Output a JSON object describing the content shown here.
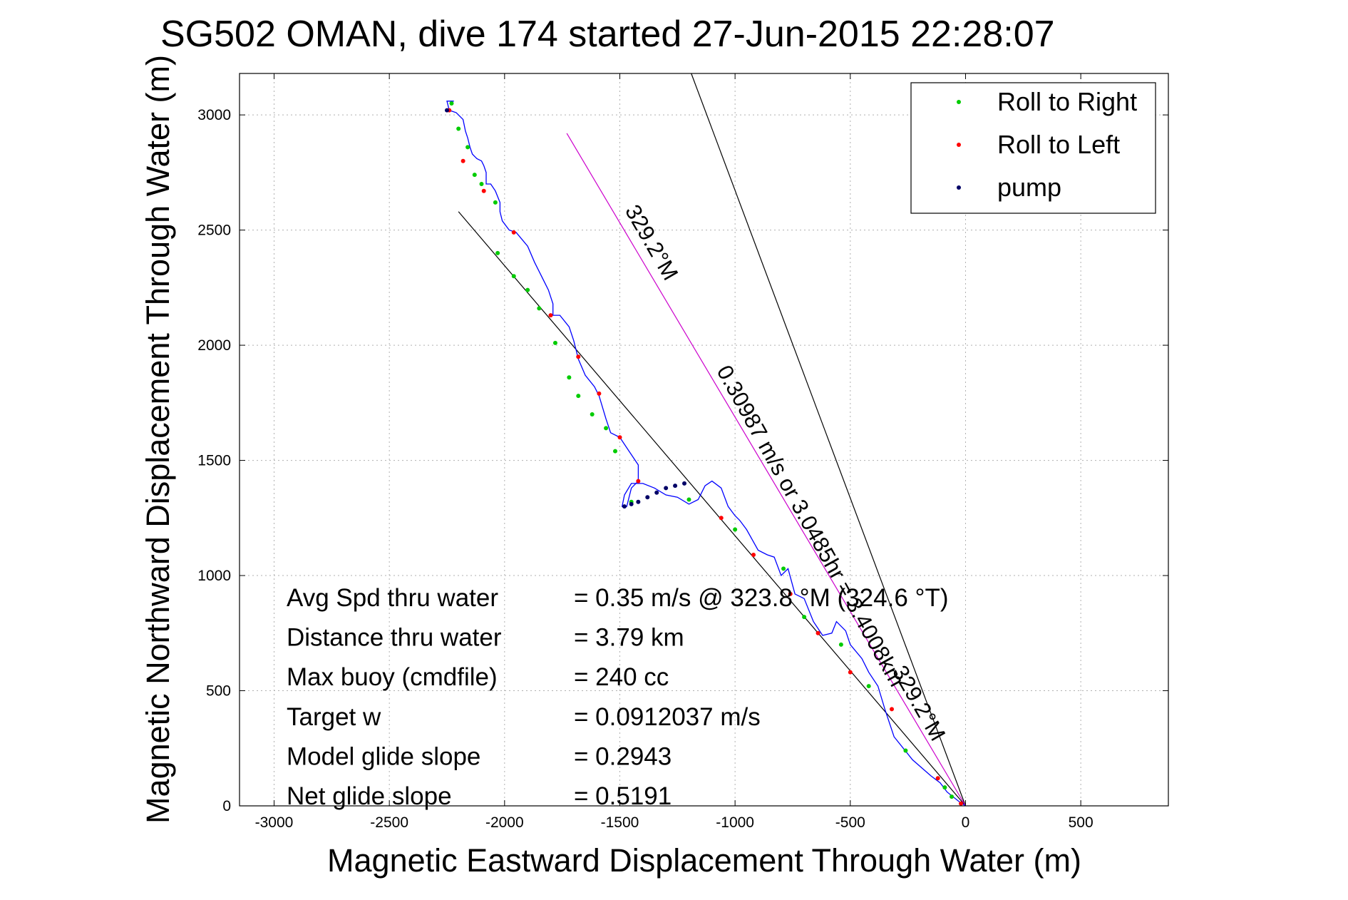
{
  "chart_data": {
    "type": "scatter",
    "title": "SG502 OMAN, dive 174 started 27-Jun-2015 22:28:07",
    "xlabel": "Magnetic Eastward Displacement Through Water (m)",
    "ylabel": "Magnetic Northward Displacement Through Water (m)",
    "xlim": [
      -3150,
      880
    ],
    "ylim": [
      0,
      3180
    ],
    "xticks": [
      -3000,
      -2500,
      -2000,
      -1500,
      -1000,
      -500,
      0,
      500
    ],
    "yticks": [
      0,
      500,
      1000,
      1500,
      2000,
      2500,
      3000
    ],
    "grid": true,
    "legend_position": "top-right",
    "legend": [
      {
        "label": "Roll to Right",
        "color": "#00cc00"
      },
      {
        "label": "Roll to Left",
        "color": "#ff0000"
      },
      {
        "label": "pump",
        "color": "#000066"
      }
    ],
    "track": {
      "name": "glider track",
      "color": "#0000ff",
      "x": [
        0,
        -30,
        -80,
        -110,
        -150,
        -230,
        -310,
        -350,
        -380,
        -420,
        -450,
        -500,
        -520,
        -560,
        -580,
        -620,
        -660,
        -700,
        -740,
        -770,
        -800,
        -830,
        -860,
        -900,
        -950,
        -980,
        -1000,
        -1030,
        -1060,
        -1100,
        -1130,
        -1160,
        -1200,
        -1250,
        -1300,
        -1350,
        -1400,
        -1450,
        -1480,
        -1490,
        -1470,
        -1450,
        -1420,
        -1420,
        -1460,
        -1500,
        -1540,
        -1560,
        -1590,
        -1590,
        -1610,
        -1650,
        -1680,
        -1690,
        -1700,
        -1720,
        -1760,
        -1790,
        -1790,
        -1810,
        -1840,
        -1870,
        -1900,
        -1950,
        -1980,
        -2010,
        -2020,
        -2020,
        -2040,
        -2060,
        -2080,
        -2080,
        -2090,
        -2100,
        -2120,
        -2130,
        -2140,
        -2150,
        -2160,
        -2170,
        -2180,
        -2210,
        -2240,
        -2250,
        -2220
      ],
      "y": [
        0,
        20,
        60,
        100,
        130,
        200,
        300,
        420,
        520,
        580,
        640,
        700,
        760,
        800,
        750,
        740,
        800,
        900,
        920,
        1030,
        1000,
        1080,
        1090,
        1110,
        1200,
        1240,
        1260,
        1300,
        1380,
        1410,
        1390,
        1330,
        1310,
        1340,
        1350,
        1380,
        1400,
        1400,
        1350,
        1300,
        1300,
        1380,
        1410,
        1480,
        1540,
        1600,
        1620,
        1680,
        1780,
        1780,
        1820,
        1870,
        1940,
        1980,
        2020,
        2080,
        2130,
        2130,
        2180,
        2240,
        2300,
        2360,
        2430,
        2490,
        2500,
        2540,
        2580,
        2620,
        2670,
        2700,
        2700,
        2750,
        2780,
        2800,
        2810,
        2820,
        2830,
        2860,
        2900,
        2930,
        2980,
        3010,
        3020,
        3060,
        3060
      ]
    },
    "roll_left_points": {
      "x": [
        -20,
        -120,
        -320,
        -500,
        -640,
        -760,
        -920,
        -1060,
        -1420,
        -1500,
        -1590,
        -1680,
        -1800,
        -1960,
        -2090,
        -2180,
        -2240
      ],
      "y": [
        10,
        120,
        420,
        580,
        750,
        920,
        1090,
        1250,
        1410,
        1600,
        1790,
        1950,
        2130,
        2490,
        2670,
        2800,
        3020
      ]
    },
    "roll_right_points": {
      "x": [
        -60,
        -90,
        -260,
        -420,
        -540,
        -700,
        -790,
        -1000,
        -1200,
        -1450,
        -1520,
        -1560,
        -1620,
        -1680,
        -1720,
        -1780,
        -1850,
        -1900,
        -1960,
        -2030,
        -2040,
        -2100,
        -2130,
        -2160,
        -2200,
        -2230
      ],
      "y": [
        40,
        80,
        240,
        520,
        700,
        820,
        1030,
        1200,
        1330,
        1320,
        1540,
        1640,
        1700,
        1780,
        1860,
        2010,
        2160,
        2240,
        2300,
        2400,
        2620,
        2700,
        2740,
        2860,
        2940,
        3050
      ]
    },
    "pump_points": {
      "x": [
        -1220,
        -1260,
        -1300,
        -1340,
        -1380,
        -1420,
        -1450,
        -1480,
        -2250
      ],
      "y": [
        1400,
        1390,
        1380,
        1360,
        1340,
        1320,
        1310,
        1300,
        3020
      ]
    },
    "reference_lines": [
      {
        "x": [
          0,
          -2200
        ],
        "y": [
          0,
          2580
        ],
        "color": "#000000"
      },
      {
        "x": [
          0,
          -1190
        ],
        "y": [
          0,
          3180
        ],
        "color": "#000000"
      },
      {
        "x": [
          0,
          -1730
        ],
        "y": [
          0,
          2920
        ],
        "color": "#cc00cc"
      }
    ],
    "annotations": [
      {
        "text": "329.2°M",
        "x": -1390,
        "y": 2430,
        "angle": 60
      },
      {
        "text": "0.30987 m/s or 3.0485hr = 3.4008km",
        "x": -700,
        "y": 1200,
        "angle": 61
      },
      {
        "text": "329.2°M",
        "x": -230,
        "y": 430,
        "angle": 60
      }
    ],
    "stats": [
      {
        "label": "Avg Spd thru water",
        "value": "=  0.35 m/s @ 323.8 °M (324.6 °T)"
      },
      {
        "label": "Distance thru water",
        "value": "=  3.79 km"
      },
      {
        "label": "Max buoy (cmdfile)",
        "value": "= 240 cc"
      },
      {
        "label": "Target w",
        "value": "= 0.0912037 m/s"
      },
      {
        "label": "Model glide slope",
        "value": "= 0.2943"
      },
      {
        "label": "Net glide slope",
        "value": "= 0.5191"
      }
    ]
  }
}
